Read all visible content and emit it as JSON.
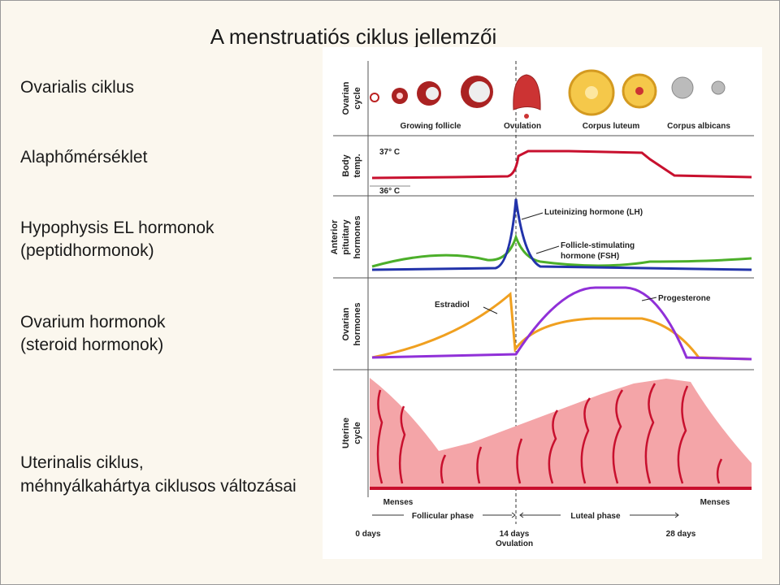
{
  "title": "A menstruatiós ciklus jellemzői",
  "left_labels": [
    [
      "Ovarialis ciklus"
    ],
    [
      "Alaphőmérséklet"
    ],
    [
      "Hypophysis EL hormonok",
      "(peptidhormonok)"
    ],
    [
      "Ovarium hormonok",
      "(steroid hormonok)"
    ],
    [
      "Uterinalis ciklus,",
      "méhnyálkahártya ciklusos változásai"
    ]
  ],
  "figure": {
    "row_labels": [
      [
        "Ovarian",
        "cycle"
      ],
      [
        "Body",
        "temp."
      ],
      [
        "Anterior",
        "pituitary",
        "hormones"
      ],
      [
        "Ovarian",
        "hormones"
      ],
      [
        "Uterine",
        "cycle"
      ]
    ],
    "ovarian_stages": [
      "Growing follicle",
      "Ovulation",
      "Corpus luteum",
      "Corpus albicans"
    ],
    "temperatures": [
      "37° C",
      "36° C"
    ],
    "pituitary_labels": [
      "Luteinizing hormone (LH)",
      [
        "Follicle-stimulating",
        "hormone (FSH)"
      ]
    ],
    "ovarian_hormone_labels": [
      "Estradiol",
      "Progesterone"
    ],
    "uterine_labels": [
      "Menses",
      "Menses"
    ],
    "phases": [
      "Follicular phase",
      "Luteal phase"
    ],
    "days": [
      "0 days",
      "14 days",
      "Ovulation",
      "28 days"
    ]
  }
}
